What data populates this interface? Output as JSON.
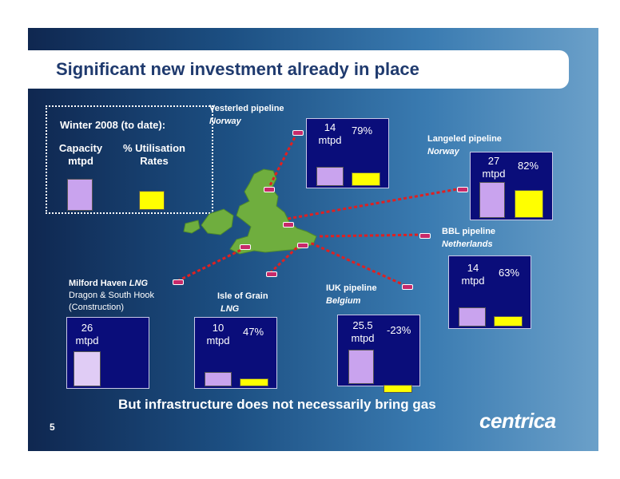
{
  "slide": {
    "title": "Significant new investment already in place",
    "footer": "But infrastructure does not necessarily bring gas",
    "page_number": "5",
    "logo": "centrica"
  },
  "legend": {
    "heading": "Winter 2008 (to date):",
    "capacity_label": "Capacity\nmtpd",
    "utilisation_label": "% Utilisation\nRates"
  },
  "colors": {
    "capacity": "#c9a3ee",
    "utilisation": "#ffff00",
    "box": "#0a0d7a",
    "pipeline": "#e02020"
  },
  "sites": [
    {
      "name": "Vesterled pipeline",
      "sub": "Norway",
      "capacity": "14",
      "unit": "mtpd",
      "utilisation": "79%",
      "utilisation_value": 79
    },
    {
      "name": "Langeled pipeline",
      "sub": "Norway",
      "capacity": "27",
      "unit": "mtpd",
      "utilisation": "82%",
      "utilisation_value": 82
    },
    {
      "name": "BBL pipeline",
      "sub": "Netherlands",
      "capacity": "14",
      "unit": "mtpd",
      "utilisation": "63%",
      "utilisation_value": 63
    },
    {
      "name": "IUK pipeline",
      "sub": "Belgium",
      "capacity": "25.5",
      "unit": "mtpd",
      "utilisation": "-23%",
      "utilisation_value": -23
    },
    {
      "name": "Isle of Grain",
      "sub": "LNG",
      "capacity": "10",
      "unit": "mtpd",
      "utilisation": "47%",
      "utilisation_value": 47
    },
    {
      "name": "Milford Haven",
      "name_suffix": "LNG",
      "line2": "Dragon & South Hook",
      "line3": "(Construction)",
      "capacity": "26",
      "unit": "mtpd"
    }
  ]
}
